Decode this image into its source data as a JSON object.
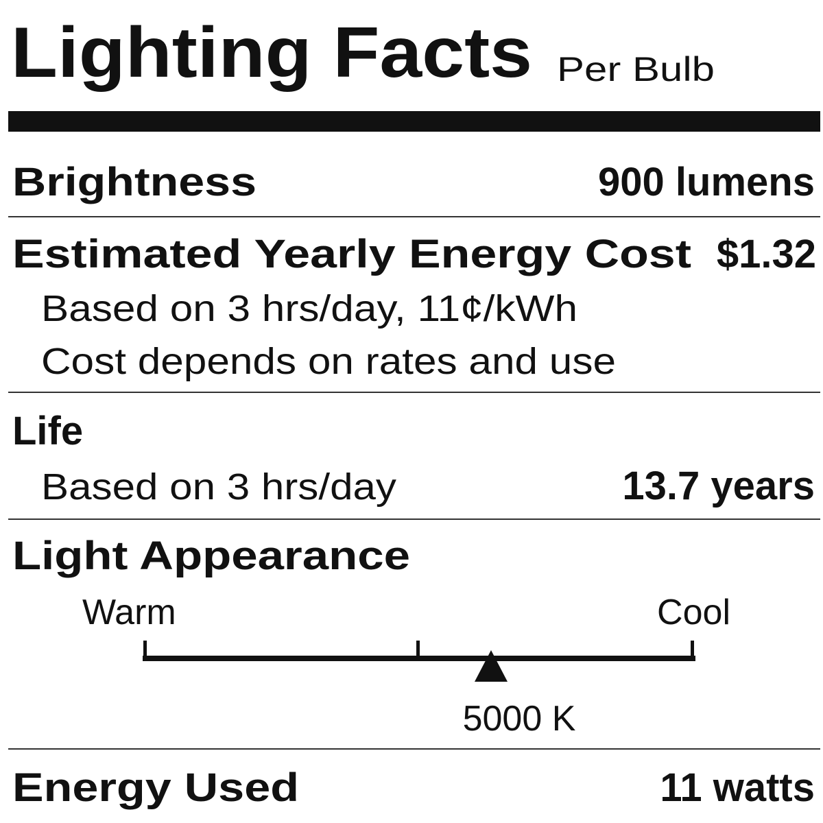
{
  "header": {
    "title": "Lighting Facts",
    "subtitle": "Per Bulb"
  },
  "brightness": {
    "label": "Brightness",
    "value": "900 lumens"
  },
  "energy_cost": {
    "label": "Estimated Yearly Energy Cost",
    "value": "$1.32",
    "notes": [
      "Based on 3 hrs/day, 11¢/kWh",
      "Cost depends on rates and use"
    ]
  },
  "life": {
    "label": "Life",
    "note": "Based on 3 hrs/day",
    "value": "13.7 years"
  },
  "light_appearance": {
    "label": "Light Appearance",
    "warm": "Warm",
    "cool": "Cool",
    "value": "5000 K"
  },
  "energy_used": {
    "label": "Energy Used",
    "value": "11 watts"
  }
}
